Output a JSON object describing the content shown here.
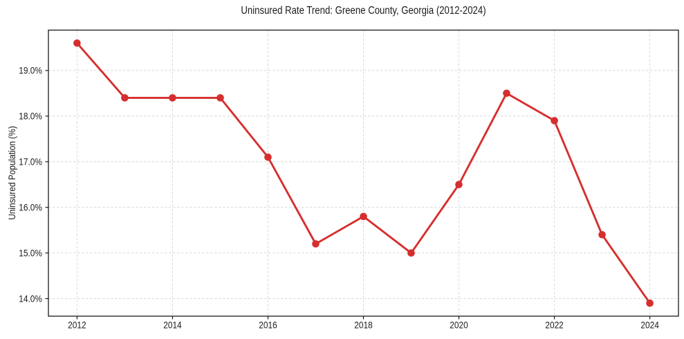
{
  "chart_data": {
    "type": "line",
    "title": "Uninsured Rate Trend: Greene County, Georgia (2012-2024)",
    "xlabel": "",
    "ylabel": "Uninsured Population (%)",
    "x": [
      2012,
      2013,
      2014,
      2015,
      2016,
      2017,
      2018,
      2019,
      2020,
      2021,
      2022,
      2023,
      2024
    ],
    "values": [
      19.6,
      18.4,
      18.4,
      18.4,
      17.1,
      15.2,
      15.8,
      15.0,
      16.5,
      18.5,
      17.9,
      15.4,
      13.9
    ],
    "unit": "percent",
    "xlim": [
      2011.4,
      2024.6
    ],
    "ylim": [
      13.615,
      19.885
    ],
    "x_ticks": [
      2012,
      2014,
      2016,
      2018,
      2020,
      2022,
      2024
    ],
    "x_tick_labels": [
      "2012",
      "2014",
      "2016",
      "2018",
      "2020",
      "2022",
      "2024"
    ],
    "y_ticks": [
      14,
      15,
      16,
      17,
      18,
      19
    ],
    "y_tick_labels": [
      "14.0%",
      "15.0%",
      "16.0%",
      "17.0%",
      "18.0%",
      "19.0%"
    ],
    "grid": true,
    "grid_style": "dashed",
    "legend": "none",
    "marker": "circle",
    "line_color": "#d62e2e",
    "grid_color": "#d8d8d8",
    "axis_color": "#1a1a1a",
    "text_color": "#1a1a1a",
    "background_color": "#ffffff"
  }
}
